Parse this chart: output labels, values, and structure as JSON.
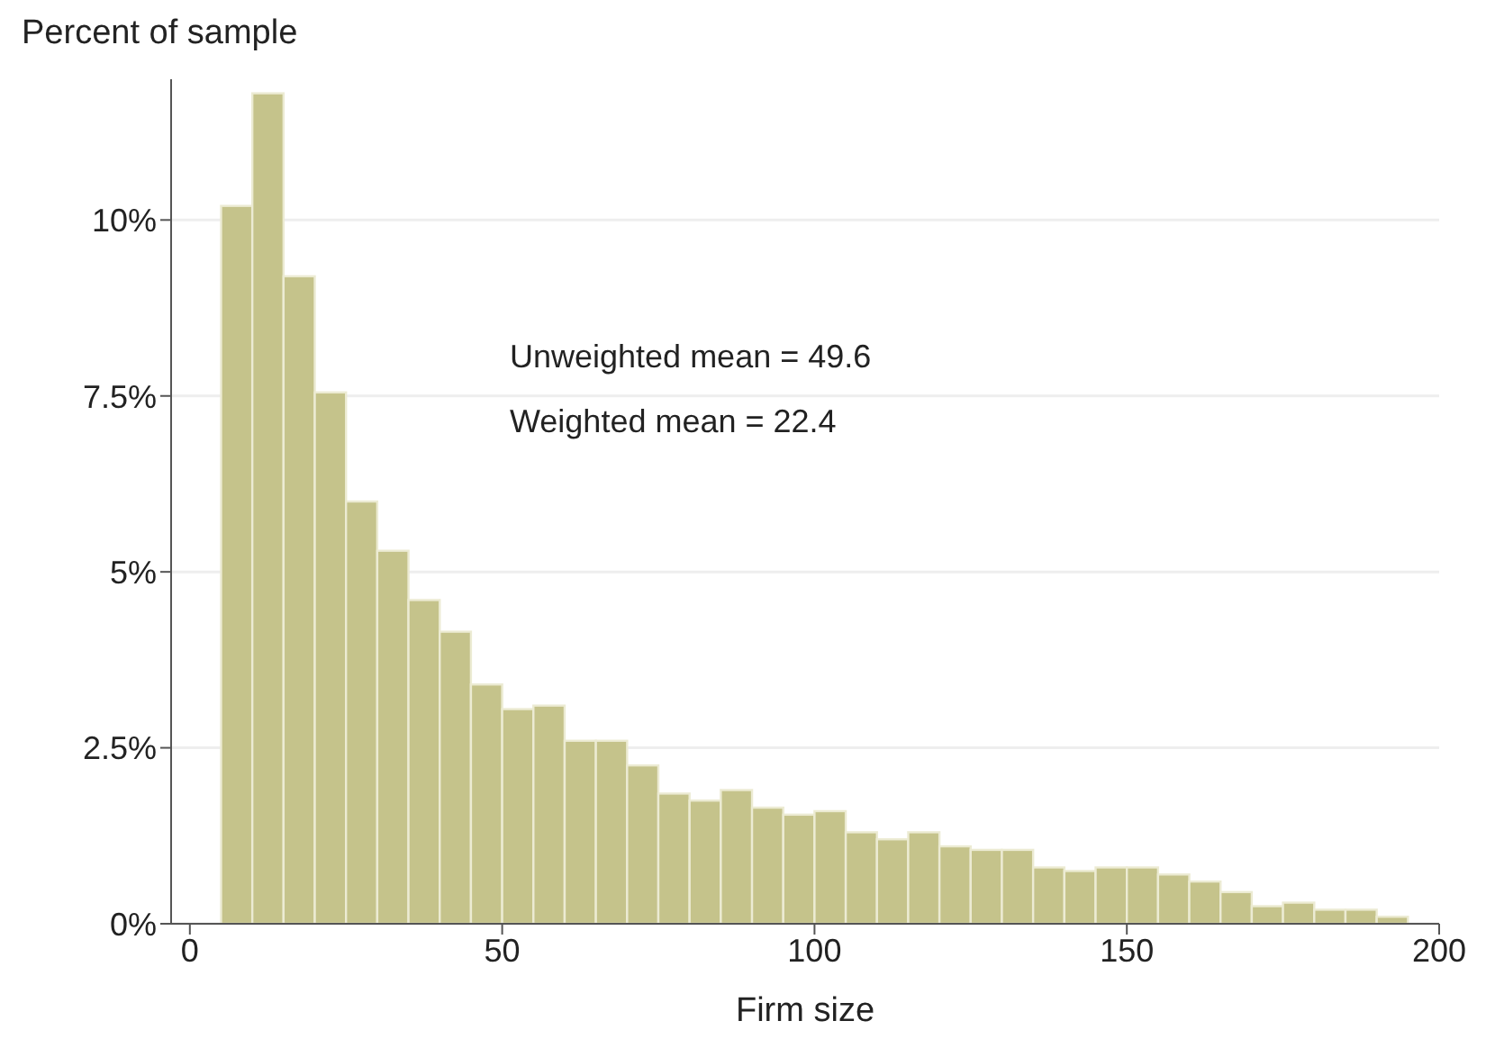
{
  "chart_data": {
    "type": "histogram",
    "xlabel": "Firm size",
    "ylabel": "Percent of sample",
    "bins": [
      5,
      10,
      15,
      20,
      25,
      30,
      35,
      40,
      45,
      50,
      55,
      60,
      65,
      70,
      75,
      80,
      85,
      90,
      95,
      100,
      105,
      110,
      115,
      120,
      125,
      130,
      135,
      140,
      145,
      150,
      155,
      160,
      165,
      170,
      175,
      180,
      185,
      190,
      195
    ],
    "values": [
      10.2,
      11.8,
      9.2,
      7.55,
      6.0,
      5.3,
      4.6,
      4.15,
      3.4,
      3.05,
      3.1,
      2.6,
      2.6,
      2.25,
      1.85,
      1.75,
      1.9,
      1.65,
      1.55,
      1.6,
      1.3,
      1.2,
      1.3,
      1.1,
      1.05,
      1.05,
      0.8,
      0.75,
      0.8,
      0.8,
      0.7,
      0.6,
      0.45,
      0.25,
      0.3,
      0.2,
      0.2,
      0.1
    ],
    "color": "#c5c38b",
    "xlim": [
      -3,
      200
    ],
    "xticks": [
      0,
      50,
      100,
      150,
      200
    ],
    "ylim": [
      0,
      12
    ],
    "yticks": [
      {
        "value": 0,
        "label": "0%"
      },
      {
        "value": 2.5,
        "label": "2.5%"
      },
      {
        "value": 5,
        "label": "5%"
      },
      {
        "value": 7.5,
        "label": "7.5%"
      },
      {
        "value": 10,
        "label": "10%"
      }
    ],
    "grid": "y",
    "annotations": [
      "Unweighted mean = 49.6",
      "Weighted mean = 22.4"
    ]
  }
}
